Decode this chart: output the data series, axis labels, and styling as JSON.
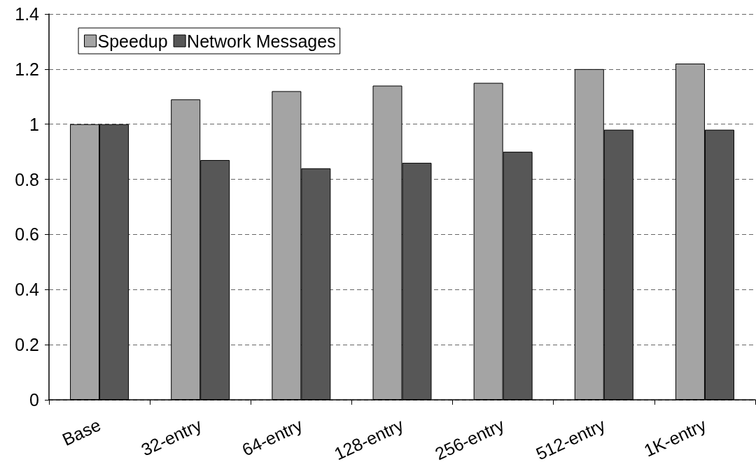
{
  "chart_data": {
    "type": "bar",
    "categories": [
      "Base",
      "32-entry",
      "64-entry",
      "128-entry",
      "256-entry",
      "512-entry",
      "1K-entry"
    ],
    "series": [
      {
        "name": "Speedup",
        "color": "#a4a4a4",
        "values": [
          1.0,
          1.09,
          1.12,
          1.14,
          1.15,
          1.2,
          1.22
        ]
      },
      {
        "name": "Network Messages",
        "color": "#575757",
        "values": [
          1.0,
          0.87,
          0.84,
          0.86,
          0.9,
          0.98,
          0.98
        ]
      }
    ],
    "ylim": [
      0,
      1.4
    ],
    "yticks": [
      0,
      0.2,
      0.4,
      0.6,
      0.8,
      1,
      1.2,
      1.4
    ],
    "grid": "y",
    "legend": "top left"
  }
}
